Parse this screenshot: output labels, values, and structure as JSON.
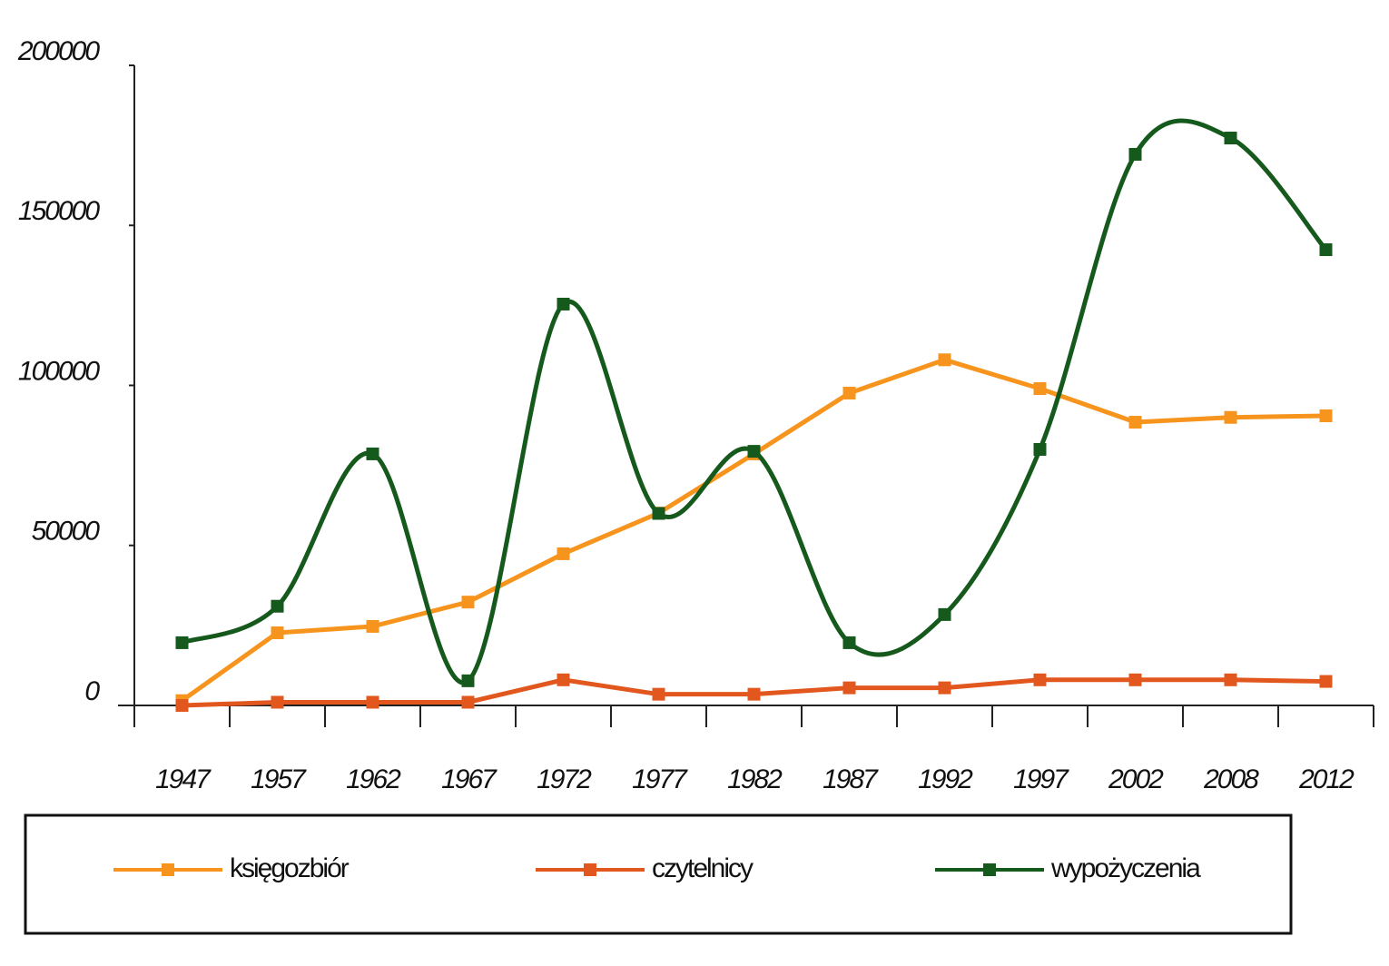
{
  "chart_data": {
    "type": "line",
    "categories": [
      "1947",
      "1957",
      "1962",
      "1967",
      "1972",
      "1977",
      "1982",
      "1987",
      "1992",
      "1997",
      "2002",
      "2008",
      "2012"
    ],
    "series": [
      {
        "name": "księgozbiór",
        "color": "#f7941d",
        "smooth": false,
        "values": [
          1500,
          22700,
          24700,
          32300,
          47400,
          60100,
          78600,
          97600,
          108000,
          99000,
          88500,
          90000,
          90500
        ]
      },
      {
        "name": "czytelnicy",
        "color": "#e2571e",
        "smooth": false,
        "values": [
          0,
          1000,
          1000,
          1000,
          8000,
          3500,
          3500,
          5500,
          5500,
          8000,
          8000,
          8000,
          7500
        ]
      },
      {
        "name": "wypożyczenia",
        "color": "#155a1c",
        "smooth": true,
        "values": [
          19600,
          31000,
          78600,
          7700,
          125400,
          60000,
          79400,
          19600,
          28400,
          80000,
          172200,
          177300,
          142400
        ]
      }
    ],
    "ylim": [
      0,
      200000
    ],
    "yticks": [
      0,
      50000,
      100000,
      150000,
      200000
    ],
    "grid": false,
    "legend": "bottom"
  }
}
